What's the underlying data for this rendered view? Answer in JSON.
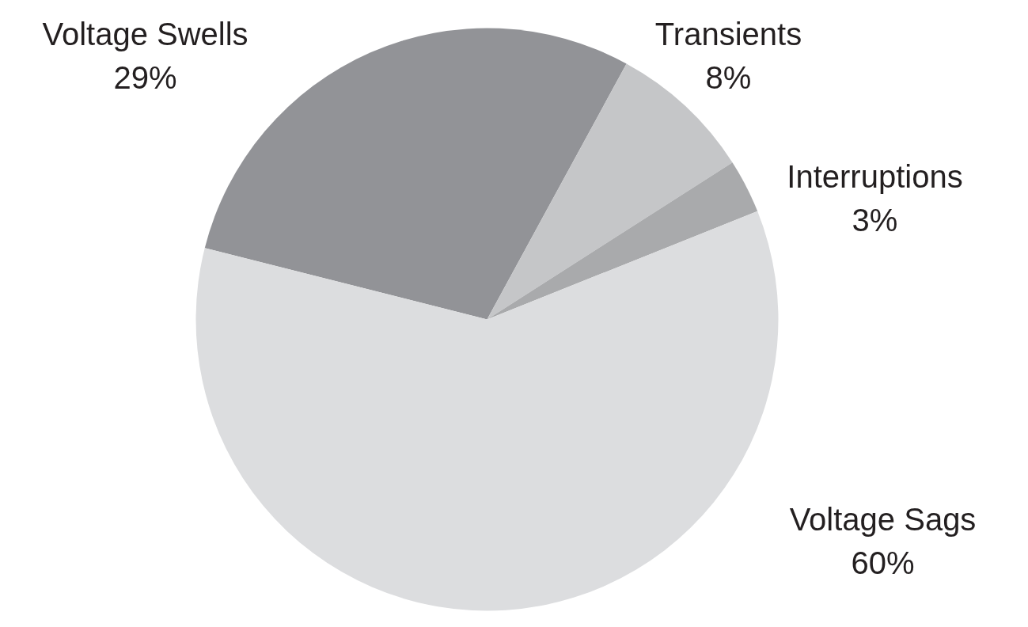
{
  "chart_data": {
    "type": "pie",
    "categories": [
      "Voltage Swells",
      "Transients",
      "Interruptions",
      "Voltage Sags"
    ],
    "values": [
      29,
      8,
      3,
      60
    ],
    "colors": [
      "#929397",
      "#c5c6c8",
      "#a9aaac",
      "#dcdddf"
    ],
    "value_labels": [
      "29%",
      "8%",
      "3%",
      "60%"
    ]
  }
}
